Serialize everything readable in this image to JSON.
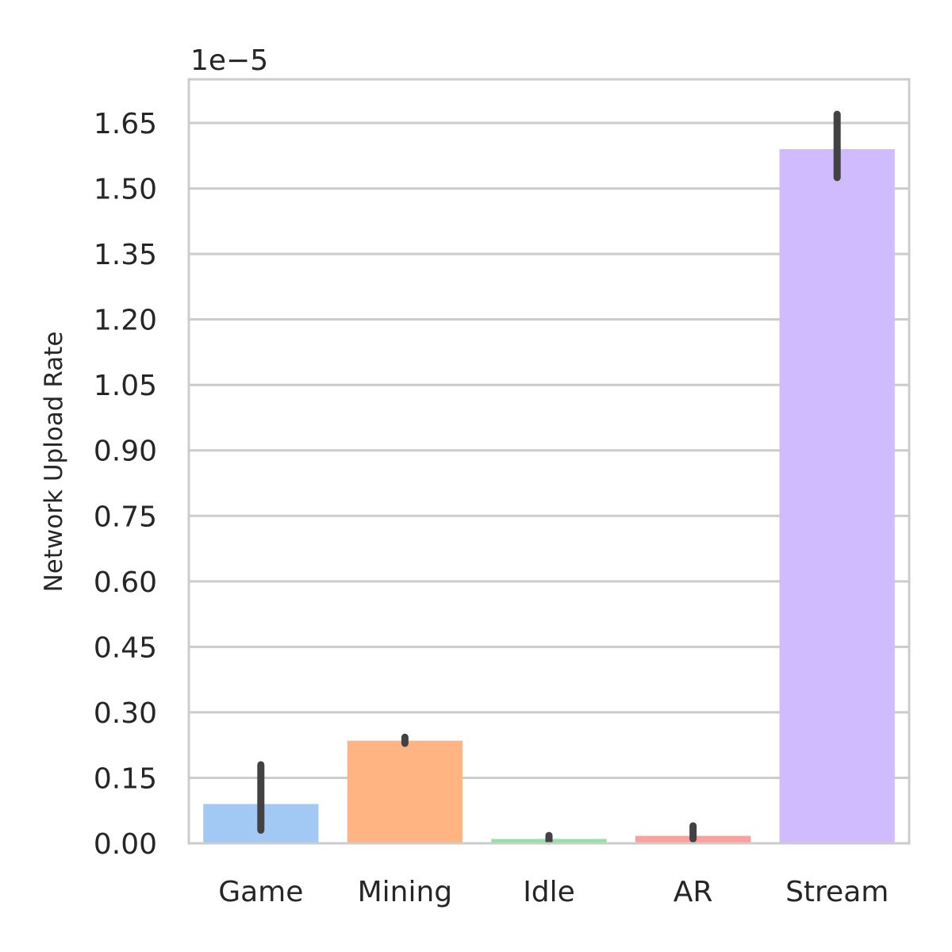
{
  "chart_data": {
    "type": "bar",
    "categories": [
      "Game",
      "Mining",
      "Idle",
      "AR",
      "Stream"
    ],
    "values": [
      0.09,
      0.235,
      0.01,
      0.017,
      1.59
    ],
    "error_low": [
      0.03,
      0.229,
      0.005,
      0.01,
      1.525
    ],
    "error_high": [
      0.18,
      0.243,
      0.018,
      0.04,
      1.67
    ],
    "colors": [
      "#a1c9f4",
      "#ffb482",
      "#8de5a1",
      "#ff9f9b",
      "#d0bbff"
    ],
    "error_color": "#424242",
    "yticks": [
      "0.00",
      "0.15",
      "0.30",
      "0.45",
      "0.60",
      "0.75",
      "0.90",
      "1.05",
      "1.20",
      "1.35",
      "1.50",
      "1.65"
    ],
    "ylim": [
      0,
      1.75
    ],
    "y_scale_label": "1e−5",
    "ylabel": "Network Upload Rate",
    "xlabel": "",
    "title": "",
    "grid": "horizontal"
  }
}
